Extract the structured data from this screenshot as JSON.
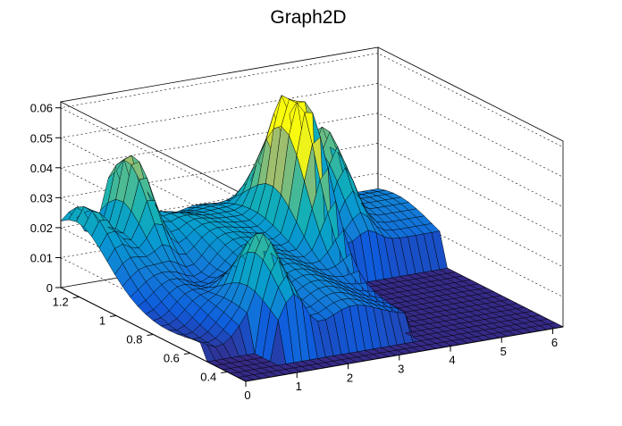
{
  "chart_data": {
    "type": "surface",
    "title": "Graph2D",
    "xlabel": "",
    "ylabel": "",
    "zlabel": "",
    "x_ticks": [
      "0",
      "1",
      "2",
      "3",
      "4",
      "5",
      "6"
    ],
    "y_ticks": [
      "0.4",
      "0.6",
      "0.8",
      "1",
      "1.2"
    ],
    "z_ticks": [
      "0",
      "0.01",
      "0.02",
      "0.03",
      "0.04",
      "0.05",
      "0.06"
    ],
    "xlim": [
      0,
      6.2
    ],
    "ylim": [
      0.3,
      1.3
    ],
    "zlim": [
      0,
      0.062
    ],
    "grid": true,
    "palette": "kBird",
    "features": [
      {
        "x": 0.2,
        "y": 1.2,
        "z": 0.012
      },
      {
        "x": 1.0,
        "y": 1.2,
        "z": 0.037
      },
      {
        "x": 1.4,
        "y": 0.6,
        "z": 0.03
      },
      {
        "x": 3.4,
        "y": 1.0,
        "z": 0.052
      },
      {
        "x": 3.7,
        "y": 0.9,
        "z": 0.03
      },
      {
        "x": 4.8,
        "y": 1.2,
        "z": 0.031
      }
    ],
    "zero_region": {
      "x": [
        3.65,
        6.2
      ],
      "y": [
        0.3,
        0.95
      ]
    }
  }
}
